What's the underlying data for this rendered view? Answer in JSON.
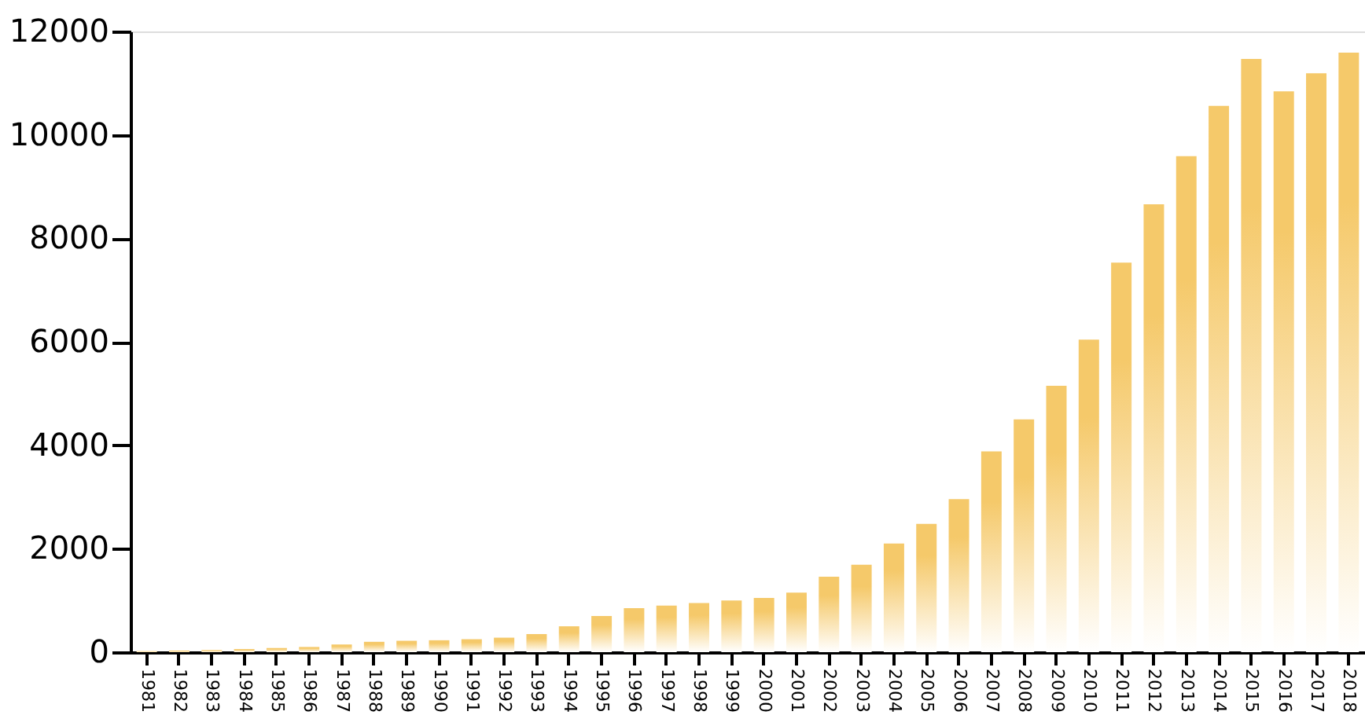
{
  "chart_data": {
    "type": "bar",
    "categories": [
      "1981",
      "1982",
      "1983",
      "1984",
      "1985",
      "1986",
      "1987",
      "1988",
      "1989",
      "1990",
      "1991",
      "1992",
      "1993",
      "1994",
      "1995",
      "1996",
      "1997",
      "1998",
      "1999",
      "2000",
      "2001",
      "2002",
      "2003",
      "2004",
      "2005",
      "2006",
      "2007",
      "2008",
      "2009",
      "2010",
      "2011",
      "2012",
      "2013",
      "2014",
      "2015",
      "2016",
      "2017",
      "2018"
    ],
    "values": [
      20,
      30,
      40,
      60,
      80,
      100,
      150,
      200,
      220,
      230,
      250,
      280,
      350,
      500,
      700,
      850,
      900,
      950,
      1000,
      1050,
      1150,
      1460,
      1690,
      2100,
      2480,
      2960,
      3880,
      4500,
      5150,
      6040,
      7530,
      8660,
      9590,
      10560,
      11470,
      10840,
      11190,
      11590
    ],
    "color": "#f5c96a",
    "ylim": [
      0,
      12000
    ],
    "yticks": [
      0,
      2000,
      4000,
      6000,
      8000,
      10000,
      12000
    ],
    "grid": false
  }
}
